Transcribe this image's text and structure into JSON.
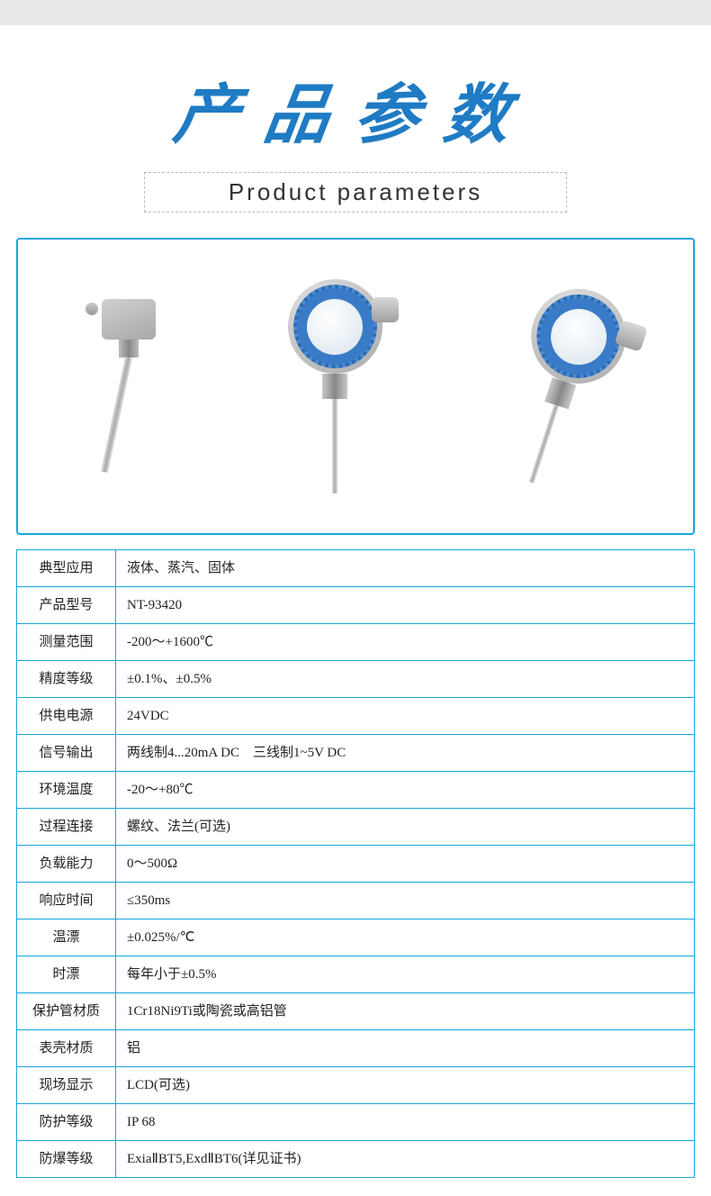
{
  "header": {
    "title_cn": "产品参数",
    "subtitle_en": "Product parameters",
    "title_color": "#1e7bc4"
  },
  "image_panel": {
    "border_color": "#18a5e0",
    "items": [
      "temperature-sensor-plain",
      "temperature-transmitter-front",
      "temperature-transmitter-angled"
    ],
    "accent_color": "#3a7bc8"
  },
  "spec_table": {
    "border_color": "#18a5e0",
    "rows": [
      {
        "label": "典型应用",
        "value": "液体、蒸汽、固体"
      },
      {
        "label": "产品型号",
        "value": "NT-93420"
      },
      {
        "label": "测量范围",
        "value": "-200～+1600℃"
      },
      {
        "label": "精度等级",
        "value": "±0.1%、±0.5%"
      },
      {
        "label": "供电电源",
        "value": "24VDC"
      },
      {
        "label": "信号输出",
        "value": "两线制4...20mA DC　三线制1~5V DC"
      },
      {
        "label": "环境温度",
        "value": "-20～+80℃"
      },
      {
        "label": "过程连接",
        "value": "螺纹、法兰(可选)"
      },
      {
        "label": "负载能力",
        "value": "0～500Ω"
      },
      {
        "label": "响应时间",
        "value": "≤350ms"
      },
      {
        "label": "温漂",
        "value": "±0.025%/℃"
      },
      {
        "label": "时漂",
        "value": "每年小于±0.5%"
      },
      {
        "label": "保护管材质",
        "value": "1Cr18Ni9Ti或陶瓷或高铝管"
      },
      {
        "label": "表壳材质",
        "value": "铝"
      },
      {
        "label": "现场显示",
        "value": "LCD(可选)"
      },
      {
        "label": "防护等级",
        "value": "IP 68"
      },
      {
        "label": "防爆等级",
        "value": "ExiaⅡBT5,ExdⅡBT6(详见证书)"
      }
    ]
  }
}
